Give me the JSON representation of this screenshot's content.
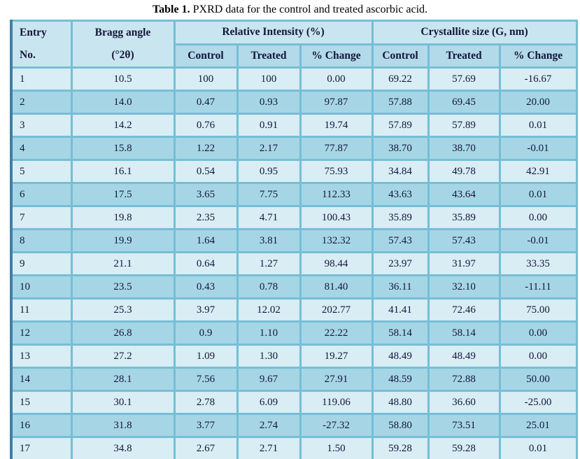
{
  "caption": {
    "label": "Table 1.",
    "text": "PXRD data for the control and treated ascorbic acid."
  },
  "table": {
    "headers": {
      "entry": [
        "Entry",
        "No."
      ],
      "bragg": [
        "Bragg angle",
        "(°2θ)"
      ],
      "relative_intensity": "Relative Intensity (%)",
      "crystallite_size": "Crystallite size (G, nm)",
      "sub": [
        "Control",
        "Treated",
        "% Change",
        "Control",
        "Treated",
        "% Change"
      ]
    },
    "rows": [
      [
        "1",
        "10.5",
        "100",
        "100",
        "0.00",
        "69.22",
        "57.69",
        "-16.67"
      ],
      [
        "2",
        "14.0",
        "0.47",
        "0.93",
        "97.87",
        "57.88",
        "69.45",
        "20.00"
      ],
      [
        "3",
        "14.2",
        "0.76",
        "0.91",
        "19.74",
        "57.89",
        "57.89",
        "0.01"
      ],
      [
        "4",
        "15.8",
        "1.22",
        "2.17",
        "77.87",
        "38.70",
        "38.70",
        "-0.01"
      ],
      [
        "5",
        "16.1",
        "0.54",
        "0.95",
        "75.93",
        "34.84",
        "49.78",
        "42.91"
      ],
      [
        "6",
        "17.5",
        "3.65",
        "7.75",
        "112.33",
        "43.63",
        "43.64",
        "0.01"
      ],
      [
        "7",
        "19.8",
        "2.35",
        "4.71",
        "100.43",
        "35.89",
        "35.89",
        "0.00"
      ],
      [
        "8",
        "19.9",
        "1.64",
        "3.81",
        "132.32",
        "57.43",
        "57.43",
        "-0.01"
      ],
      [
        "9",
        "21.1",
        "0.64",
        "1.27",
        "98.44",
        "23.97",
        "31.97",
        "33.35"
      ],
      [
        "10",
        "23.5",
        "0.43",
        "0.78",
        "81.40",
        "36.11",
        "32.10",
        "-11.11"
      ],
      [
        "11",
        "25.3",
        "3.97",
        "12.02",
        "202.77",
        "41.41",
        "72.46",
        "75.00"
      ],
      [
        "12",
        "26.8",
        "0.9",
        "1.10",
        "22.22",
        "58.14",
        "58.14",
        "0.00"
      ],
      [
        "13",
        "27.2",
        "1.09",
        "1.30",
        "19.27",
        "48.49",
        "48.49",
        "0.00"
      ],
      [
        "14",
        "28.1",
        "7.56",
        "9.67",
        "27.91",
        "48.59",
        "72.88",
        "50.00"
      ],
      [
        "15",
        "30.1",
        "2.78",
        "6.09",
        "119.06",
        "48.80",
        "36.60",
        "-25.00"
      ],
      [
        "16",
        "31.8",
        "3.77",
        "2.74",
        "-27.32",
        "58.80",
        "73.51",
        "25.01"
      ],
      [
        "17",
        "34.8",
        "2.67",
        "2.71",
        "1.50",
        "59.28",
        "59.28",
        "0.01"
      ]
    ]
  },
  "colors": {
    "row_light": "#d8edf4",
    "row_dark": "#a6d6e5",
    "header_top": "#c9e6f0",
    "header_sub": "#b2dae8",
    "grid_border": "#76bed6",
    "outer_left_border": "#3f7fa6",
    "outer_bottom_border": "#549cc0",
    "text": "#15153a"
  }
}
